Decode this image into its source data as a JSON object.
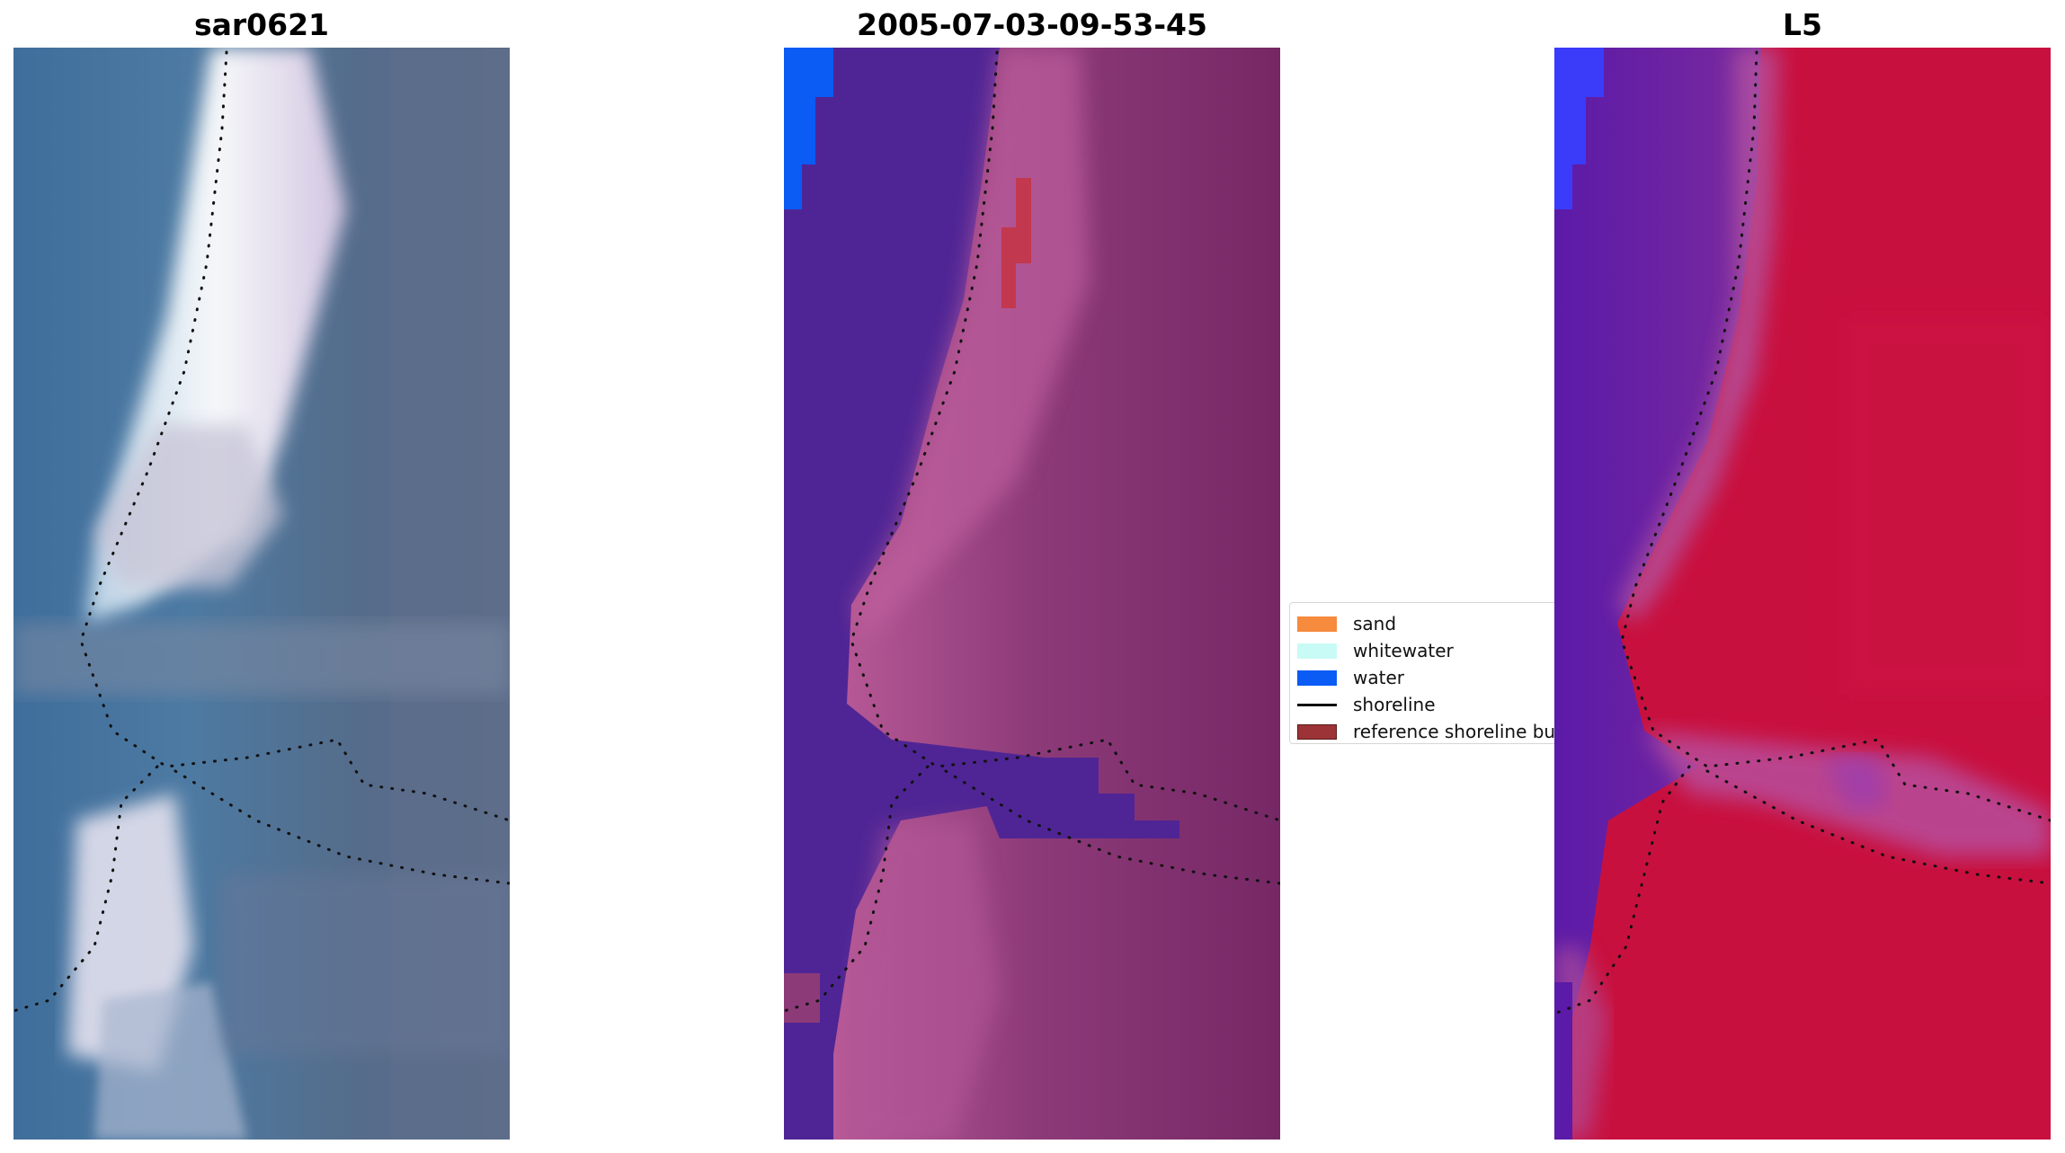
{
  "panels": [
    {
      "title": "sar0621"
    },
    {
      "title": "2005-07-03-09-53-45"
    },
    {
      "title": "L5"
    }
  ],
  "legend": {
    "items": [
      {
        "label": "sand",
        "color": "#f68a3d"
      },
      {
        "label": "whitewater",
        "color": "#c9fbf6"
      },
      {
        "label": "water",
        "color": "#0b5bf5"
      },
      {
        "label": "shoreline",
        "color": "#111111"
      },
      {
        "label": "reference shoreline buffer",
        "color": "#9c3337"
      }
    ]
  },
  "colors": {
    "rgb_base": "#56708f",
    "class_water": "#4f2595",
    "class_land": "#7a2a66",
    "class_land_light": "#b85a97",
    "class_blue": "#0b5bf5",
    "class_red": "#c2384e",
    "mndwi_land": "#c8103e",
    "mndwi_water": "#6314a7"
  }
}
